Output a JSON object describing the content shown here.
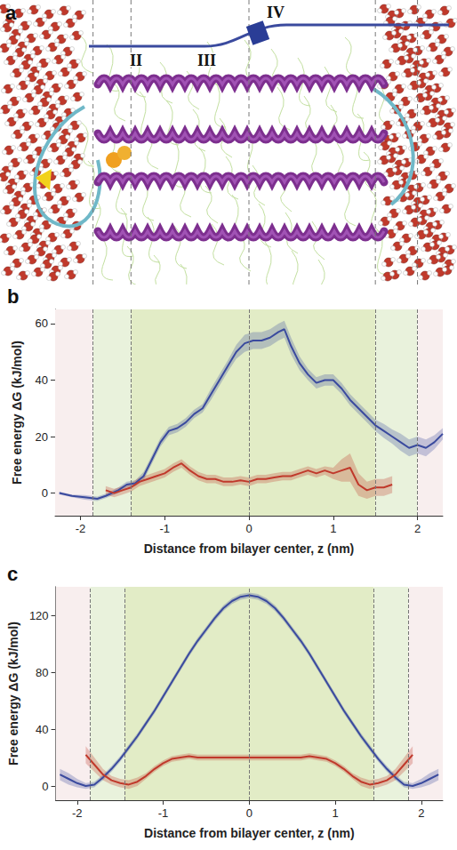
{
  "panel_a": {
    "title": "a",
    "labels": [
      "II",
      "III",
      "IV"
    ]
  },
  "chart_data": [
    {
      "type": "line",
      "title": "b",
      "x_label": "Distance from bilayer center, z (nm)",
      "y_label": "Free energy ΔG (kJ/mol)",
      "xlim": [
        -2.3,
        2.3
      ],
      "xticks": [
        -2,
        -1,
        0,
        1,
        2
      ],
      "ylim": [
        -8,
        65
      ],
      "yticks": [
        0,
        20,
        40,
        60
      ],
      "grid": false,
      "reference_lines": [
        -1.85,
        -1.4,
        0,
        1.5,
        2.0
      ],
      "series": [
        {
          "color": "#3a4a9e",
          "x": [
            -2.25,
            -2.1,
            -1.95,
            -1.8,
            -1.7,
            -1.55,
            -1.45,
            -1.35,
            -1.25,
            -1.15,
            -1.05,
            -0.95,
            -0.85,
            -0.75,
            -0.65,
            -0.55,
            -0.45,
            -0.35,
            -0.25,
            -0.15,
            -0.05,
            0.05,
            0.15,
            0.25,
            0.35,
            0.42,
            0.5,
            0.6,
            0.7,
            0.8,
            0.9,
            1.0,
            1.1,
            1.2,
            1.3,
            1.4,
            1.5,
            1.6,
            1.7,
            1.8,
            1.9,
            2.0,
            2.1,
            2.2,
            2.3
          ],
          "values": [
            0,
            -1,
            -1.5,
            -2,
            -1,
            1,
            3,
            3.5,
            6,
            12,
            18,
            22,
            23,
            25,
            28,
            30,
            35,
            40,
            45,
            50,
            53,
            54,
            54,
            55,
            57,
            58,
            52,
            46,
            42,
            39,
            40,
            40,
            37,
            33,
            30,
            27,
            24,
            22,
            20,
            18,
            16,
            17,
            16,
            18,
            21
          ],
          "error": [
            0.5,
            0.5,
            0.8,
            0.8,
            0.8,
            1,
            1,
            1,
            1.5,
            1.5,
            1.5,
            1.5,
            1.5,
            1.5,
            1.5,
            1.5,
            2,
            2,
            2,
            2.5,
            3,
            3,
            3,
            3,
            3,
            3,
            3,
            2.5,
            2,
            2,
            2,
            2,
            2,
            2,
            2,
            2,
            2,
            2.5,
            2.5,
            3,
            3,
            3,
            3,
            2.5,
            2
          ]
        },
        {
          "color": "#c0392b",
          "x": [
            -1.7,
            -1.6,
            -1.5,
            -1.4,
            -1.3,
            -1.2,
            -1.1,
            -1.0,
            -0.9,
            -0.8,
            -0.7,
            -0.6,
            -0.5,
            -0.4,
            -0.3,
            -0.2,
            -0.1,
            0,
            0.1,
            0.2,
            0.3,
            0.4,
            0.5,
            0.6,
            0.7,
            0.8,
            0.9,
            1.0,
            1.1,
            1.2,
            1.3,
            1.4,
            1.5,
            1.6,
            1.7
          ],
          "values": [
            1,
            0,
            1,
            2,
            4,
            5,
            6,
            7,
            9,
            10.5,
            8,
            6,
            5,
            5,
            4,
            4,
            4.5,
            4,
            5,
            5,
            5.5,
            6,
            6,
            7,
            8,
            7,
            8,
            7,
            8,
            9,
            3,
            1,
            2,
            2,
            3
          ],
          "error": [
            1.5,
            1.5,
            1.5,
            1.5,
            1.5,
            1.5,
            1.5,
            1.5,
            1.5,
            1.5,
            1.5,
            1.5,
            1.5,
            1.5,
            1.5,
            1.5,
            1.5,
            1.5,
            1.5,
            1.5,
            1.5,
            1.5,
            1.5,
            1.5,
            1.5,
            1.5,
            1.5,
            2,
            4,
            5,
            4,
            3,
            3,
            3,
            3
          ]
        }
      ]
    },
    {
      "type": "line",
      "title": "c",
      "x_label": "Distance from bilayer center, z (nm)",
      "y_label": "Free energy ΔG (kJ/mol)",
      "xlim": [
        -2.25,
        2.25
      ],
      "xticks": [
        -2,
        -1,
        0,
        1,
        2
      ],
      "ylim": [
        -10,
        140
      ],
      "yticks": [
        0,
        40,
        80,
        120
      ],
      "grid": false,
      "reference_lines": [
        -1.85,
        -1.45,
        0,
        1.45,
        1.85
      ],
      "series": [
        {
          "color": "#3a4a9e",
          "x": [
            -2.2,
            -2.1,
            -2.0,
            -1.9,
            -1.8,
            -1.7,
            -1.6,
            -1.5,
            -1.4,
            -1.3,
            -1.2,
            -1.1,
            -1.0,
            -0.9,
            -0.8,
            -0.7,
            -0.6,
            -0.5,
            -0.4,
            -0.3,
            -0.2,
            -0.1,
            0,
            0.1,
            0.2,
            0.3,
            0.4,
            0.5,
            0.6,
            0.7,
            0.8,
            0.9,
            1.0,
            1.1,
            1.2,
            1.3,
            1.4,
            1.5,
            1.6,
            1.7,
            1.8,
            1.9,
            2.0,
            2.1,
            2.2
          ],
          "values": [
            8,
            5,
            2,
            0,
            1,
            6,
            12,
            19,
            27,
            35,
            44,
            53,
            63,
            73,
            83,
            93,
            102,
            110,
            118,
            125,
            130,
            133,
            134,
            133,
            130,
            125,
            118,
            110,
            102,
            93,
            83,
            73,
            63,
            53,
            44,
            35,
            27,
            19,
            12,
            6,
            1,
            0,
            2,
            5,
            8
          ],
          "error": [
            4,
            4,
            3,
            2,
            2,
            2,
            2,
            2,
            2,
            2,
            2,
            2,
            2,
            2,
            2,
            2,
            2,
            2,
            2,
            2,
            2,
            2,
            2,
            2,
            2,
            2,
            2,
            2,
            2,
            2,
            2,
            2,
            2,
            2,
            2,
            2,
            2,
            2,
            2,
            2,
            2,
            2,
            3,
            4,
            4
          ]
        },
        {
          "color": "#c0392b",
          "x": [
            -1.9,
            -1.8,
            -1.7,
            -1.6,
            -1.5,
            -1.4,
            -1.3,
            -1.2,
            -1.1,
            -1.0,
            -0.9,
            -0.8,
            -0.7,
            -0.6,
            -0.5,
            -0.4,
            -0.3,
            -0.2,
            -0.1,
            0,
            0.1,
            0.2,
            0.3,
            0.4,
            0.5,
            0.6,
            0.7,
            0.8,
            0.9,
            1.0,
            1.1,
            1.2,
            1.3,
            1.4,
            1.5,
            1.6,
            1.7,
            1.8,
            1.9
          ],
          "values": [
            22,
            15,
            8,
            4,
            2,
            1,
            3,
            7,
            12,
            16,
            19,
            20,
            21,
            20,
            20,
            20,
            20,
            20,
            20,
            20,
            20,
            20,
            20,
            20,
            20,
            20,
            21,
            20,
            19,
            16,
            12,
            7,
            3,
            1,
            2,
            4,
            8,
            15,
            22
          ],
          "error": [
            6,
            5,
            4,
            3,
            3,
            3,
            3,
            2,
            2,
            2,
            2,
            2,
            2,
            2,
            2,
            2,
            2,
            2,
            2,
            2,
            2,
            2,
            2,
            2,
            2,
            2,
            2,
            2,
            2,
            2,
            2,
            2,
            3,
            3,
            3,
            3,
            4,
            5,
            6
          ]
        }
      ]
    }
  ]
}
